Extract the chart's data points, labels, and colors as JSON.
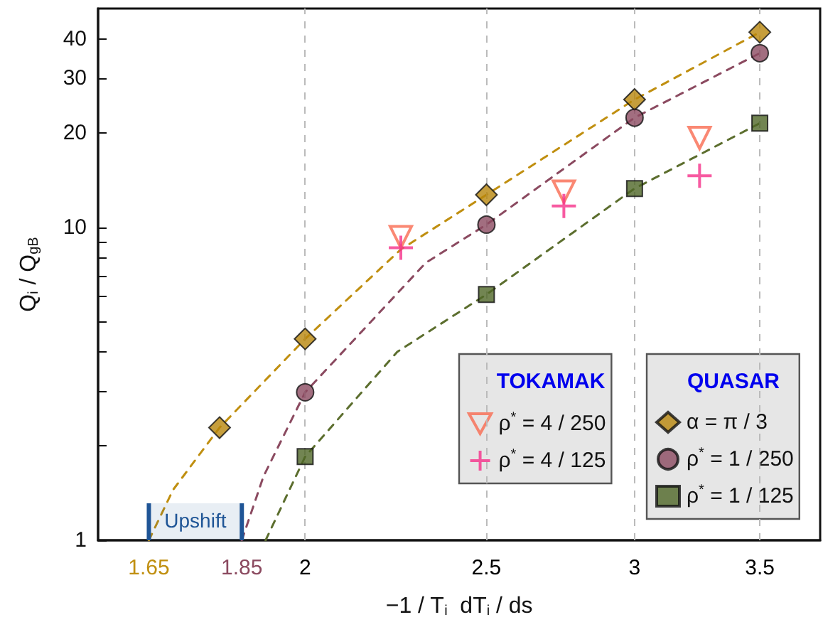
{
  "chart_data": {
    "type": "scatter",
    "xlabel": "−1 / T$_{i}$  dT$_{i}$ / ds",
    "ylabel": "Q$_{i}$ / Q$_{gB}$",
    "log": "xy",
    "xlim": [
      1.55,
      3.77
    ],
    "ylim": [
      1,
      50
    ],
    "xticks": [
      1.65,
      1.85,
      2,
      2.5,
      3,
      3.5
    ],
    "yticks": [
      1,
      {
        "value": 2,
        "label": null
      },
      {
        "value": 3,
        "label": null
      },
      {
        "value": 4,
        "label": null
      },
      {
        "value": 5,
        "label": null
      },
      {
        "value": 6,
        "label": null
      },
      {
        "value": 7,
        "label": null
      },
      {
        "value": 8,
        "label": null
      },
      {
        "value": 9,
        "label": null
      },
      10,
      20,
      30,
      40
    ],
    "grid": false,
    "legend": "bottom right",
    "annotations": [
      "TOKAMAK",
      "QUASAR"
    ],
    "bands": [
      {
        "axis": "x",
        "from": 1.65,
        "to": 1.85,
        "label": "Upshift",
        "color": "#1f5596"
      }
    ],
    "ref_lines": [
      {
        "axis": "x",
        "value": 2,
        "color": "#bbbbbb",
        "line_style": "dashed"
      },
      {
        "axis": "x",
        "value": 2.5,
        "color": "#bbbbbb",
        "line_style": "dashed"
      },
      {
        "axis": "x",
        "value": 3,
        "color": "#bbbbbb",
        "line_style": "dashed"
      },
      {
        "axis": "x",
        "value": 3.5,
        "color": "#bbbbbb",
        "line_style": "dashed"
      }
    ],
    "series": [
      {
        "type": "line",
        "color": "#c08f10",
        "marker": "none",
        "line_style": "dashed",
        "x": [
          1.65,
          1.7,
          1.8,
          2,
          2.25,
          2.5,
          3,
          3.5
        ],
        "values": [
          1,
          1.45,
          2.29,
          4.4,
          8.5,
          12.7,
          25.6,
          42
        ]
      },
      {
        "type": "line",
        "color": "#8b4a60",
        "marker": "none",
        "line_style": "dashed",
        "x": [
          1.85,
          1.9,
          2,
          2.32,
          2.5,
          3,
          3.5
        ],
        "values": [
          1,
          1.6,
          2.97,
          7.7,
          10.2,
          22.4,
          36
        ]
      },
      {
        "type": "line",
        "color": "#5c6e2e",
        "marker": "none",
        "line_style": "dashed",
        "x": [
          1.905,
          2,
          2.24,
          2.5,
          3,
          3.5
        ],
        "values": [
          1,
          1.85,
          4,
          6.1,
          13.3,
          21.5
        ]
      },
      {
        "name": "ρ$^{*}$ = 4 / 250",
        "marker": "triangle",
        "color": "#f96a50",
        "x": [
          2.25,
          2.75,
          3.25
        ],
        "values": [
          9.3,
          13,
          19.3
        ]
      },
      {
        "name": "ρ$^{*}$ = 4 / 125",
        "marker": "cross",
        "color": "#f5318a",
        "x": [
          2.25,
          2.75,
          3.25
        ],
        "values": [
          8.6,
          11.7,
          14.6
        ]
      },
      {
        "name": "α = π / 3",
        "marker": "diamond",
        "color": "#b8860b",
        "x": [
          1.8,
          2,
          2.5,
          3,
          3.5
        ],
        "values": [
          2.29,
          4.4,
          12.7,
          25.6,
          42
        ]
      },
      {
        "name": "ρ$^{*}$ = 1 / 250",
        "marker": "circle",
        "color": "#8b4a60",
        "x": [
          2,
          2.5,
          3,
          3.5
        ],
        "values": [
          2.97,
          10.2,
          22.4,
          36
        ]
      },
      {
        "name": "ρ$^{*}$ = 1 / 125",
        "marker": "square",
        "color": "#4f6627",
        "x": [
          2,
          2.5,
          3,
          3.5
        ],
        "values": [
          1.85,
          6.1,
          13.3,
          21.5
        ]
      }
    ]
  }
}
